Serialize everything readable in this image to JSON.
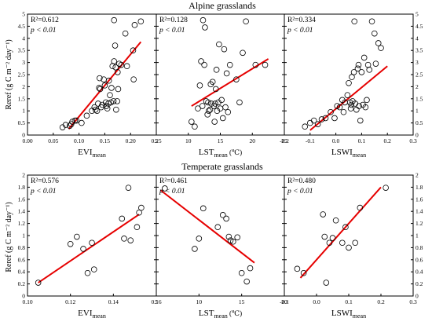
{
  "groups": [
    {
      "title": "Alpine grasslands",
      "ylabel": "Reref (g C m⁻² day⁻¹)",
      "yticks": [
        0,
        0.5,
        1,
        1.5,
        2,
        2.5,
        3,
        3.5,
        4,
        4.5,
        5
      ],
      "ylim": [
        0,
        5
      ]
    },
    {
      "title": "Temperate grasslands",
      "ylabel": "Reref (g C m⁻² day⁻¹)",
      "yticks": [
        0,
        0.2,
        0.4,
        0.6,
        0.8,
        1,
        1.2,
        1.4,
        1.6,
        1.8,
        2
      ],
      "ylim": [
        0,
        2
      ]
    }
  ],
  "chart_data": [
    {
      "type": "scatter",
      "group": 0,
      "xlabel_main": "EVI",
      "xlabel_sub": "mean",
      "r2": "R²=0.612",
      "p": "p < 0.01",
      "xlim": [
        0,
        0.25
      ],
      "xticks": [
        "0.00",
        "0.05",
        "0.10",
        "0.15",
        "0.20",
        "0.25"
      ],
      "xtick_vals": [
        0,
        0.05,
        0.1,
        0.15,
        0.2,
        0.25
      ],
      "fit": [
        [
          0.08,
          0.25
        ],
        [
          0.22,
          3.85
        ]
      ],
      "points": [
        [
          0.068,
          0.32
        ],
        [
          0.074,
          0.42
        ],
        [
          0.082,
          0.38
        ],
        [
          0.085,
          0.45
        ],
        [
          0.087,
          0.55
        ],
        [
          0.092,
          0.6
        ],
        [
          0.095,
          0.6
        ],
        [
          0.105,
          0.5
        ],
        [
          0.115,
          0.8
        ],
        [
          0.125,
          1.0
        ],
        [
          0.13,
          1.15
        ],
        [
          0.132,
          1.05
        ],
        [
          0.135,
          1.0
        ],
        [
          0.137,
          1.3
        ],
        [
          0.139,
          1.95
        ],
        [
          0.14,
          2.35
        ],
        [
          0.141,
          1.9
        ],
        [
          0.143,
          1.15
        ],
        [
          0.145,
          1.25
        ],
        [
          0.148,
          2.3
        ],
        [
          0.15,
          2.05
        ],
        [
          0.152,
          1.35
        ],
        [
          0.153,
          1.2
        ],
        [
          0.155,
          1.1
        ],
        [
          0.157,
          1.3
        ],
        [
          0.158,
          2.25
        ],
        [
          0.16,
          1.65
        ],
        [
          0.162,
          1.35
        ],
        [
          0.163,
          1.95
        ],
        [
          0.165,
          2.85
        ],
        [
          0.167,
          1.4
        ],
        [
          0.168,
          3.05
        ],
        [
          0.168,
          4.75
        ],
        [
          0.17,
          3.7
        ],
        [
          0.171,
          2.8
        ],
        [
          0.172,
          1.05
        ],
        [
          0.174,
          1.4
        ],
        [
          0.175,
          2.6
        ],
        [
          0.176,
          1.9
        ],
        [
          0.178,
          2.95
        ],
        [
          0.182,
          2.9
        ],
        [
          0.19,
          4.2
        ],
        [
          0.193,
          2.85
        ],
        [
          0.205,
          3.5
        ],
        [
          0.206,
          2.3
        ],
        [
          0.208,
          4.55
        ],
        [
          0.22,
          4.7
        ]
      ]
    },
    {
      "type": "scatter",
      "group": 0,
      "xlabel_main": "LST",
      "xlabel_sub": "mean",
      "xlabel_unit": " (℃)",
      "r2": "R²=0.128",
      "p": "p < 0.01",
      "xlim": [
        5,
        25
      ],
      "xticks": [
        "5",
        "10",
        "15",
        "20",
        "25"
      ],
      "xtick_vals": [
        5,
        10,
        15,
        20,
        25
      ],
      "fit": [
        [
          10.5,
          1.2
        ],
        [
          22.5,
          3.15
        ]
      ],
      "points": [
        [
          10.5,
          0.55
        ],
        [
          11.0,
          0.35
        ],
        [
          11.5,
          1.1
        ],
        [
          11.8,
          2.05
        ],
        [
          12.0,
          3.05
        ],
        [
          12.2,
          1.2
        ],
        [
          12.3,
          4.75
        ],
        [
          12.5,
          2.9
        ],
        [
          12.6,
          4.45
        ],
        [
          12.8,
          1.4
        ],
        [
          13.0,
          0.85
        ],
        [
          13.1,
          1.35
        ],
        [
          13.2,
          1.0
        ],
        [
          13.4,
          1.05
        ],
        [
          13.5,
          2.1
        ],
        [
          13.6,
          1.3
        ],
        [
          13.8,
          2.2
        ],
        [
          14.0,
          1.2
        ],
        [
          14.1,
          0.55
        ],
        [
          14.2,
          1.3
        ],
        [
          14.3,
          1.9
        ],
        [
          14.4,
          2.7
        ],
        [
          14.5,
          1.0
        ],
        [
          14.7,
          1.35
        ],
        [
          14.8,
          3.75
        ],
        [
          15.0,
          1.1
        ],
        [
          15.2,
          1.45
        ],
        [
          15.4,
          0.7
        ],
        [
          15.6,
          3.55
        ],
        [
          15.8,
          1.15
        ],
        [
          16.0,
          2.55
        ],
        [
          16.2,
          0.95
        ],
        [
          16.5,
          2.9
        ],
        [
          17.5,
          2.3
        ],
        [
          18.0,
          1.35
        ],
        [
          18.5,
          3.4
        ],
        [
          19.0,
          4.7
        ],
        [
          20.5,
          2.9
        ],
        [
          22.0,
          2.9
        ]
      ]
    },
    {
      "type": "scatter",
      "group": 0,
      "xlabel_main": "LSWI",
      "xlabel_sub": "mean",
      "r2": "R²=0.334",
      "p": "p < 0.01",
      "xlim": [
        -0.2,
        0.3
      ],
      "xticks": [
        "-0.2",
        "-0.1",
        "0.0",
        "0.1",
        "0.2",
        "0.3"
      ],
      "xtick_vals": [
        -0.2,
        -0.1,
        0,
        0.1,
        0.2,
        0.3
      ],
      "fit": [
        [
          -0.1,
          0.2
        ],
        [
          0.2,
          2.85
        ]
      ],
      "points": [
        [
          -0.12,
          0.35
        ],
        [
          -0.1,
          0.5
        ],
        [
          -0.085,
          0.6
        ],
        [
          -0.07,
          0.45
        ],
        [
          -0.055,
          0.65
        ],
        [
          -0.04,
          0.7
        ],
        [
          -0.02,
          0.95
        ],
        [
          -0.005,
          0.7
        ],
        [
          0.005,
          1.2
        ],
        [
          0.015,
          1.15
        ],
        [
          0.025,
          1.45
        ],
        [
          0.03,
          0.95
        ],
        [
          0.035,
          1.35
        ],
        [
          0.045,
          1.65
        ],
        [
          0.05,
          2.15
        ],
        [
          0.055,
          1.35
        ],
        [
          0.058,
          1.1
        ],
        [
          0.06,
          1.25
        ],
        [
          0.062,
          2.4
        ],
        [
          0.065,
          1.4
        ],
        [
          0.07,
          2.6
        ],
        [
          0.072,
          4.7
        ],
        [
          0.075,
          1.3
        ],
        [
          0.08,
          1.05
        ],
        [
          0.085,
          2.75
        ],
        [
          0.088,
          2.9
        ],
        [
          0.09,
          1.2
        ],
        [
          0.095,
          0.6
        ],
        [
          0.1,
          2.6
        ],
        [
          0.105,
          1.25
        ],
        [
          0.11,
          3.2
        ],
        [
          0.115,
          1.15
        ],
        [
          0.12,
          1.45
        ],
        [
          0.125,
          2.9
        ],
        [
          0.13,
          2.7
        ],
        [
          0.14,
          4.7
        ],
        [
          0.15,
          4.2
        ],
        [
          0.155,
          2.95
        ],
        [
          0.165,
          3.8
        ],
        [
          0.175,
          3.6
        ]
      ]
    },
    {
      "type": "scatter",
      "group": 1,
      "xlabel_main": "EVI",
      "xlabel_sub": "mean",
      "r2": "R²=0.576",
      "p": "p < 0.01",
      "xlim": [
        0.1,
        0.16
      ],
      "xticks": [
        "0.10",
        "0.12",
        "0.14",
        "0.16"
      ],
      "xtick_vals": [
        0.1,
        0.12,
        0.14,
        0.16
      ],
      "fit": [
        [
          0.105,
          0.22
        ],
        [
          0.152,
          1.35
        ]
      ],
      "points": [
        [
          0.105,
          0.22
        ],
        [
          0.12,
          0.86
        ],
        [
          0.123,
          0.98
        ],
        [
          0.126,
          0.78
        ],
        [
          0.128,
          0.38
        ],
        [
          0.13,
          0.88
        ],
        [
          0.131,
          0.44
        ],
        [
          0.144,
          1.28
        ],
        [
          0.145,
          0.95
        ],
        [
          0.147,
          1.79
        ],
        [
          0.148,
          0.92
        ],
        [
          0.151,
          1.14
        ],
        [
          0.152,
          1.38
        ],
        [
          0.153,
          1.46
        ]
      ]
    },
    {
      "type": "scatter",
      "group": 1,
      "xlabel_main": "LST",
      "xlabel_sub": "mean",
      "xlabel_unit": " (℃)",
      "r2": "R²=0.461",
      "p": "p < 0.01",
      "xlim": [
        5,
        20
      ],
      "xticks": [
        "5",
        "10",
        "15",
        "20"
      ],
      "xtick_vals": [
        5,
        10,
        15,
        20
      ],
      "fit": [
        [
          5.5,
          1.75
        ],
        [
          16.5,
          0.55
        ]
      ],
      "points": [
        [
          6.0,
          1.78
        ],
        [
          9.5,
          0.78
        ],
        [
          10.0,
          0.95
        ],
        [
          10.5,
          1.45
        ],
        [
          12.2,
          1.14
        ],
        [
          12.8,
          1.34
        ],
        [
          13.2,
          1.28
        ],
        [
          13.5,
          0.98
        ],
        [
          13.7,
          0.92
        ],
        [
          14.0,
          0.9
        ],
        [
          14.5,
          0.97
        ],
        [
          15.0,
          0.38
        ],
        [
          15.6,
          0.24
        ],
        [
          16.0,
          0.46
        ]
      ]
    },
    {
      "type": "scatter",
      "group": 1,
      "xlabel_main": "LSWI",
      "xlabel_sub": "mean",
      "r2": "R²=0.480",
      "p": "p < 0.01",
      "xlim": [
        -0.1,
        0.3
      ],
      "xticks": [
        "-0.1",
        "0.0",
        "0.1",
        "0.2",
        "0.3"
      ],
      "xtick_vals": [
        -0.1,
        0,
        0.1,
        0.2,
        0.3
      ],
      "fit": [
        [
          -0.05,
          0.3
        ],
        [
          0.2,
          1.8
        ]
      ],
      "points": [
        [
          -0.06,
          0.45
        ],
        [
          -0.04,
          0.38
        ],
        [
          0.02,
          1.35
        ],
        [
          0.025,
          0.98
        ],
        [
          0.03,
          0.22
        ],
        [
          0.04,
          0.88
        ],
        [
          0.05,
          0.96
        ],
        [
          0.06,
          1.25
        ],
        [
          0.08,
          0.88
        ],
        [
          0.09,
          1.14
        ],
        [
          0.1,
          0.8
        ],
        [
          0.12,
          0.88
        ],
        [
          0.135,
          1.46
        ],
        [
          0.215,
          1.79
        ]
      ]
    }
  ]
}
